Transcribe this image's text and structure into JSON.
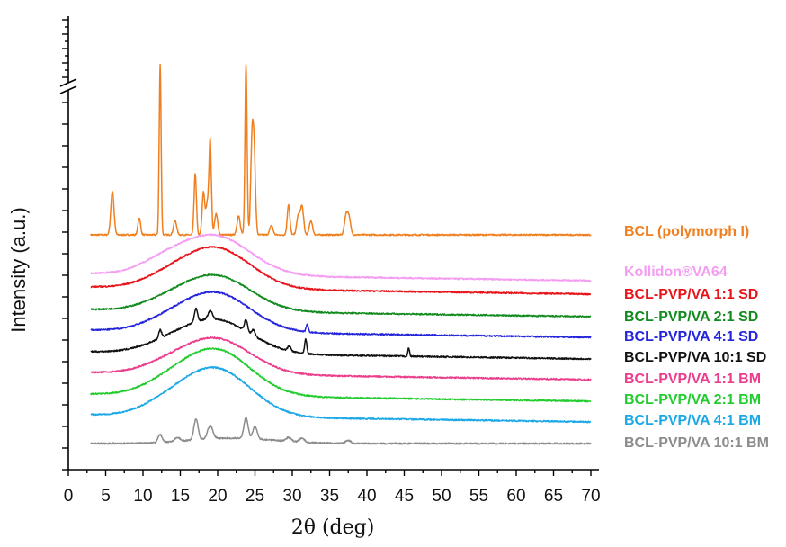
{
  "chart_data": {
    "type": "line",
    "xlabel": "2θ (deg)",
    "ylabel": "Intensity (a.u.)",
    "xlim": [
      0,
      70
    ],
    "xticks": [
      0,
      5,
      10,
      15,
      20,
      25,
      30,
      35,
      40,
      45,
      50,
      55,
      60,
      65,
      70
    ],
    "x_range": [
      3,
      70
    ],
    "y_axis": "stacked offset traces, no numeric tick labels, axis break at top",
    "series": [
      {
        "name": "BCL (polymorph I)",
        "color": "#f07f1f",
        "kind": "crystalline",
        "baseline": 0.2,
        "slope": 0.0,
        "peaks": [
          [
            5.9,
            0.3,
            4.6
          ],
          [
            9.5,
            0.25,
            1.8
          ],
          [
            12.3,
            0.18,
            18
          ],
          [
            14.3,
            0.3,
            1.5
          ],
          [
            17.0,
            0.22,
            6.5
          ],
          [
            18.1,
            0.25,
            4.5
          ],
          [
            18.6,
            0.25,
            3.2
          ],
          [
            19.0,
            0.22,
            10
          ],
          [
            19.8,
            0.3,
            2.2
          ],
          [
            22.8,
            0.3,
            2.0
          ],
          [
            23.8,
            0.2,
            18
          ],
          [
            24.6,
            0.25,
            9.5
          ],
          [
            24.9,
            0.25,
            7.8
          ],
          [
            27.2,
            0.3,
            1.0
          ],
          [
            29.5,
            0.25,
            3.2
          ],
          [
            30.8,
            0.3,
            2.0
          ],
          [
            31.3,
            0.3,
            3.0
          ],
          [
            32.5,
            0.3,
            1.5
          ],
          [
            37.2,
            0.3,
            2.0
          ],
          [
            37.6,
            0.3,
            1.8
          ]
        ]
      },
      {
        "name": "Kollidon®VA64",
        "color": "#f49cf2",
        "kind": "amorphous",
        "baseline": 0.0,
        "slope": 0.0
      },
      {
        "name": "BCL-PVP/VA 1:1 SD",
        "color": "#e8141b",
        "kind": "amorphous",
        "baseline": 0.0,
        "slope": 0.0
      },
      {
        "name": "BCL-PVP/VA 2:1 SD",
        "color": "#118a1e",
        "kind": "amorphous",
        "baseline": 0.0,
        "slope": 0.0
      },
      {
        "name": "BCL-PVP/VA 4:1 SD",
        "color": "#2424dc",
        "kind": "amorphous",
        "baseline": 0.0,
        "slope": 0.0,
        "peaks": [
          [
            32.0,
            0.2,
            0.8
          ]
        ]
      },
      {
        "name": "BCL-PVP/VA 10:1 SD",
        "color": "#111111",
        "kind": "amorphous",
        "baseline": 0.0,
        "slope": 0.0,
        "peaks": [
          [
            12.3,
            0.25,
            0.9
          ],
          [
            17.1,
            0.3,
            1.4
          ],
          [
            19.0,
            0.4,
            0.9
          ],
          [
            23.8,
            0.3,
            1.2
          ],
          [
            24.8,
            0.3,
            0.6
          ],
          [
            29.6,
            0.3,
            0.5
          ],
          [
            31.8,
            0.2,
            1.5
          ],
          [
            45.6,
            0.15,
            0.9
          ]
        ]
      },
      {
        "name": "BCL-PVP/VA 1:1 BM",
        "color": "#ec3d8c",
        "kind": "amorphous",
        "baseline": 0.0,
        "slope": 0.0
      },
      {
        "name": "BCL-PVP/VA 2:1 BM",
        "color": "#22cc2f",
        "kind": "amorphous",
        "baseline": 0.0,
        "slope": 0.0
      },
      {
        "name": "BCL-PVP/VA 4:1 BM",
        "color": "#1ba8e6",
        "kind": "amorphous",
        "baseline": 0.0,
        "slope": 0.0
      },
      {
        "name": "BCL-PVP/VA 10:1 BM",
        "color": "#8c8c8c",
        "kind": "crystalline",
        "baseline": 0.0,
        "slope": 0.0,
        "peaks": [
          [
            12.3,
            0.4,
            0.8
          ],
          [
            14.6,
            0.5,
            0.4
          ],
          [
            17.1,
            0.4,
            2.2
          ],
          [
            19.0,
            0.5,
            1.4
          ],
          [
            23.8,
            0.4,
            2.2
          ],
          [
            25.0,
            0.4,
            1.3
          ],
          [
            29.5,
            0.5,
            0.4
          ],
          [
            31.3,
            0.5,
            0.4
          ],
          [
            37.5,
            0.5,
            0.3
          ]
        ]
      }
    ]
  }
}
